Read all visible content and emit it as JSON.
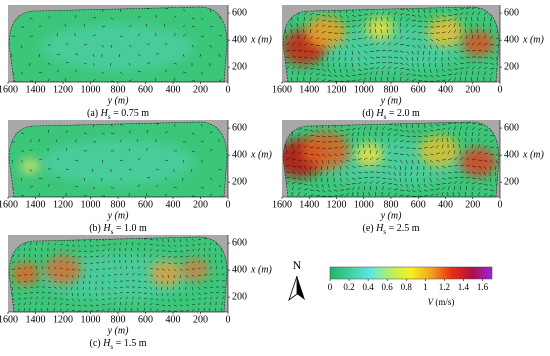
{
  "chart_data": [
    {
      "type": "field",
      "caption": {
        "tag": "(a) ",
        "symbol": "H",
        "sub": "s",
        "value": " = 0.75 m"
      },
      "xlabel": "y (m)",
      "ylabel": "x (m)",
      "xlim": [
        1600,
        0
      ],
      "xticks": [
        1600,
        1400,
        1200,
        1000,
        800,
        600,
        400,
        200,
        0
      ],
      "ylim": [
        90,
        660
      ],
      "yticks": [
        200,
        400,
        600
      ]
    },
    {
      "type": "field",
      "caption": {
        "tag": "(b) ",
        "symbol": "H",
        "sub": "s",
        "value": " = 1.0 m"
      },
      "xlabel": "y (m)",
      "ylabel": "x (m)",
      "xlim": [
        1600,
        0
      ],
      "xticks": [
        1600,
        1400,
        1200,
        1000,
        800,
        600,
        400,
        200,
        0
      ],
      "ylim": [
        90,
        660
      ],
      "yticks": [
        200,
        400,
        600
      ]
    },
    {
      "type": "field",
      "caption": {
        "tag": "(c) ",
        "symbol": "H",
        "sub": "s",
        "value": " = 1.5 m"
      },
      "xlabel": "y (m)",
      "ylabel": "x (m)",
      "xlim": [
        1600,
        0
      ],
      "xticks": [
        1600,
        1400,
        1200,
        1000,
        800,
        600,
        400,
        200,
        0
      ],
      "ylim": [
        90,
        660
      ],
      "yticks": [
        200,
        400,
        600
      ]
    },
    {
      "type": "field",
      "caption": {
        "tag": "(d) ",
        "symbol": "H",
        "sub": "s",
        "value": " = 2.0 m"
      },
      "xlabel": "y (m)",
      "ylabel": "x (m)",
      "xlim": [
        1600,
        0
      ],
      "xticks": [
        1600,
        1400,
        1200,
        1000,
        800,
        600,
        400,
        200,
        0
      ],
      "ylim": [
        90,
        660
      ],
      "yticks": [
        200,
        400,
        600
      ]
    },
    {
      "type": "field",
      "caption": {
        "tag": "(e) ",
        "symbol": "H",
        "sub": "s",
        "value": " = 2.5 m"
      },
      "xlabel": "y (m)",
      "ylabel": "x (m)",
      "xlim": [
        1600,
        0
      ],
      "xticks": [
        1600,
        1400,
        1200,
        1000,
        800,
        600,
        400,
        200,
        0
      ],
      "ylim": [
        90,
        660
      ],
      "yticks": [
        200,
        400,
        600
      ]
    }
  ],
  "colorbar": {
    "symbol": "V",
    "unit": " (m/s)",
    "range": [
      0,
      1.7
    ],
    "ticks": [
      0,
      0.2,
      0.4,
      0.6,
      0.8,
      1,
      1.2,
      1.4,
      1.6
    ],
    "colors": [
      "#1fb56a",
      "#3fd0a0",
      "#5fe8e0",
      "#b8f060",
      "#f8f020",
      "#f8a020",
      "#e83010",
      "#b01040",
      "#a020e0"
    ]
  },
  "north": "N"
}
